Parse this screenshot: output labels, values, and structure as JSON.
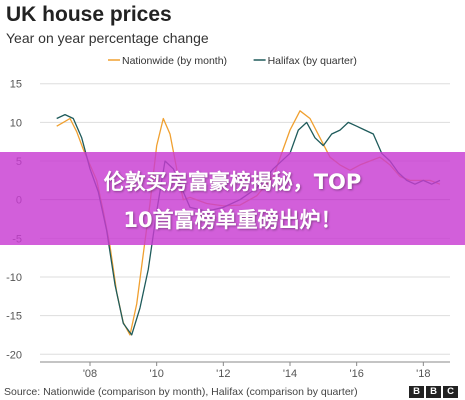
{
  "chart_data": {
    "type": "line",
    "title": "UK house prices",
    "subtitle": "Year on year percentage change",
    "xlim": [
      2006.5,
      2018.8
    ],
    "ylim": [
      -21,
      16
    ],
    "yticks": [
      15,
      10,
      5,
      0,
      -5,
      -10,
      -15,
      -20
    ],
    "xticks": [
      {
        "value": 2008,
        "label": "'08"
      },
      {
        "value": 2010,
        "label": "'10"
      },
      {
        "value": 2012,
        "label": "'12"
      },
      {
        "value": 2014,
        "label": "'14"
      },
      {
        "value": 2016,
        "label": "'16"
      },
      {
        "value": 2018,
        "label": "'18"
      }
    ],
    "grid": "horizontal",
    "legend_position": "top",
    "series": [
      {
        "name": "Nationwide (by month)",
        "color": "#F0A030",
        "x": [
          2007.0,
          2007.2,
          2007.4,
          2007.6,
          2007.8,
          2008.0,
          2008.2,
          2008.4,
          2008.6,
          2008.8,
          2009.0,
          2009.2,
          2009.4,
          2009.6,
          2009.8,
          2010.0,
          2010.2,
          2010.4,
          2010.6,
          2010.8,
          2011.0,
          2011.5,
          2012.0,
          2012.5,
          2013.0,
          2013.5,
          2014.0,
          2014.3,
          2014.6,
          2014.9,
          2015.2,
          2015.5,
          2015.8,
          2016.1,
          2016.4,
          2016.7,
          2017.0,
          2017.3,
          2017.6,
          2017.9,
          2018.2,
          2018.5
        ],
        "values": [
          9.5,
          10.0,
          10.5,
          8.8,
          6.5,
          4.5,
          2.5,
          -1.5,
          -6.0,
          -12.0,
          -15.9,
          -17.5,
          -13.5,
          -7.0,
          -0.5,
          7.0,
          10.5,
          8.5,
          4.0,
          0.0,
          0.3,
          -0.5,
          -0.8,
          -0.7,
          0.5,
          3.0,
          9.0,
          11.5,
          10.5,
          8.0,
          5.5,
          4.5,
          3.8,
          4.5,
          5.0,
          5.5,
          4.5,
          3.0,
          2.5,
          2.5,
          2.5,
          2.0
        ]
      },
      {
        "name": "Halifax (by quarter)",
        "color": "#1F5B5B",
        "x": [
          2007.0,
          2007.25,
          2007.5,
          2007.75,
          2008.0,
          2008.25,
          2008.5,
          2008.75,
          2009.0,
          2009.25,
          2009.5,
          2009.75,
          2010.0,
          2010.25,
          2010.5,
          2010.75,
          2011.0,
          2011.5,
          2012.0,
          2012.5,
          2013.0,
          2013.5,
          2014.0,
          2014.25,
          2014.5,
          2014.75,
          2015.0,
          2015.25,
          2015.5,
          2015.75,
          2016.0,
          2016.25,
          2016.5,
          2016.75,
          2017.0,
          2017.25,
          2017.5,
          2017.75,
          2018.0,
          2018.25,
          2018.5
        ],
        "values": [
          10.5,
          11.0,
          10.5,
          8.0,
          4.0,
          1.0,
          -4.0,
          -11.0,
          -16.0,
          -17.5,
          -14.0,
          -9.0,
          -1.5,
          5.0,
          4.0,
          1.5,
          -1.0,
          -1.5,
          -1.0,
          0.0,
          1.5,
          4.0,
          6.0,
          9.0,
          10.0,
          8.0,
          7.0,
          8.5,
          9.0,
          10.0,
          9.5,
          9.0,
          8.5,
          6.0,
          5.0,
          3.5,
          2.5,
          2.0,
          2.5,
          2.0,
          2.5
        ]
      }
    ]
  },
  "banner": {
    "line1": "伦敦买房富豪榜揭秘，TOP",
    "line2": "10首富榜单重磅出炉！"
  },
  "footer": {
    "source": "Source: Nationwide (comparison by month), Halifax (comparison by quarter)",
    "logo_letters": [
      "B",
      "B",
      "C"
    ]
  }
}
